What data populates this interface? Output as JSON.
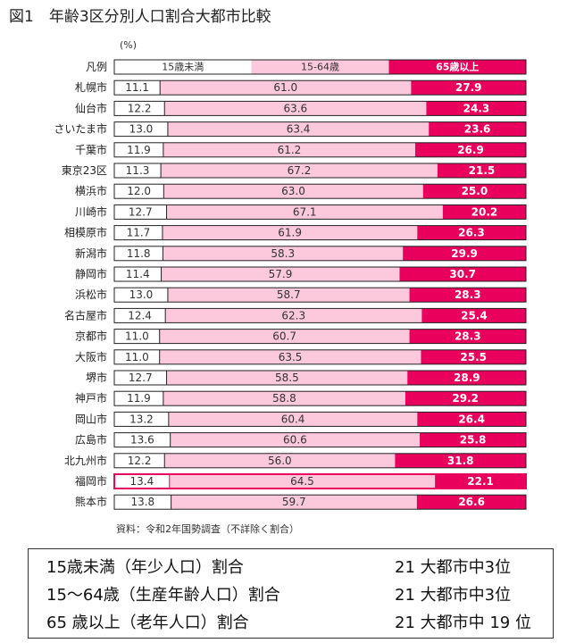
{
  "title": "図1　年齢3区分別人口割合大都市比較",
  "unit": "(%)",
  "legend": {
    "label": "凡例",
    "items": [
      "15歳未満",
      "15-64歳",
      "65歳以上"
    ]
  },
  "colors": {
    "under15": "#ffffff",
    "working": "#fcc8dc",
    "elderly": "#e8005c",
    "border": "#222222",
    "highlight_border": "#e8005c"
  },
  "chart_data": {
    "type": "bar",
    "orientation": "horizontal",
    "stacked": true,
    "xlim": [
      0,
      100
    ],
    "categories": [
      "札幌市",
      "仙台市",
      "さいたま市",
      "千葉市",
      "東京23区",
      "横浜市",
      "川崎市",
      "相模原市",
      "新潟市",
      "静岡市",
      "浜松市",
      "名古屋市",
      "京都市",
      "大阪市",
      "堺市",
      "神戸市",
      "岡山市",
      "広島市",
      "北九州市",
      "福岡市",
      "熊本市"
    ],
    "highlighted": "福岡市",
    "series": [
      {
        "name": "15歳未満",
        "values": [
          11.1,
          12.2,
          13.0,
          11.9,
          11.3,
          12.0,
          12.7,
          11.7,
          11.8,
          11.4,
          13.0,
          12.4,
          11.0,
          11.0,
          12.7,
          11.9,
          13.2,
          13.6,
          12.2,
          13.4,
          13.8
        ]
      },
      {
        "name": "15-64歳",
        "values": [
          61.0,
          63.6,
          63.4,
          61.2,
          67.2,
          63.0,
          67.1,
          61.9,
          58.3,
          57.9,
          58.7,
          62.3,
          60.7,
          63.5,
          58.5,
          58.8,
          60.4,
          60.6,
          56.0,
          64.5,
          59.7
        ]
      },
      {
        "name": "65歳以上",
        "values": [
          27.9,
          24.3,
          23.6,
          26.9,
          21.5,
          25.0,
          20.2,
          26.3,
          29.9,
          30.7,
          28.3,
          25.4,
          28.3,
          25.5,
          28.9,
          29.2,
          26.4,
          25.8,
          31.8,
          22.1,
          26.6
        ]
      }
    ]
  },
  "source": "資料：令和2年国勢調査（不詳除く割合）",
  "summary": [
    {
      "label": "15歳未満（年少人口）割合",
      "rank": "21 大都市中3位"
    },
    {
      "label": "15～64歳（生産年齢人口）割合",
      "rank": "21 大都市中3位"
    },
    {
      "label": "65 歳以上（老年人口）割合",
      "rank": "21 大都市中 19 位"
    }
  ]
}
